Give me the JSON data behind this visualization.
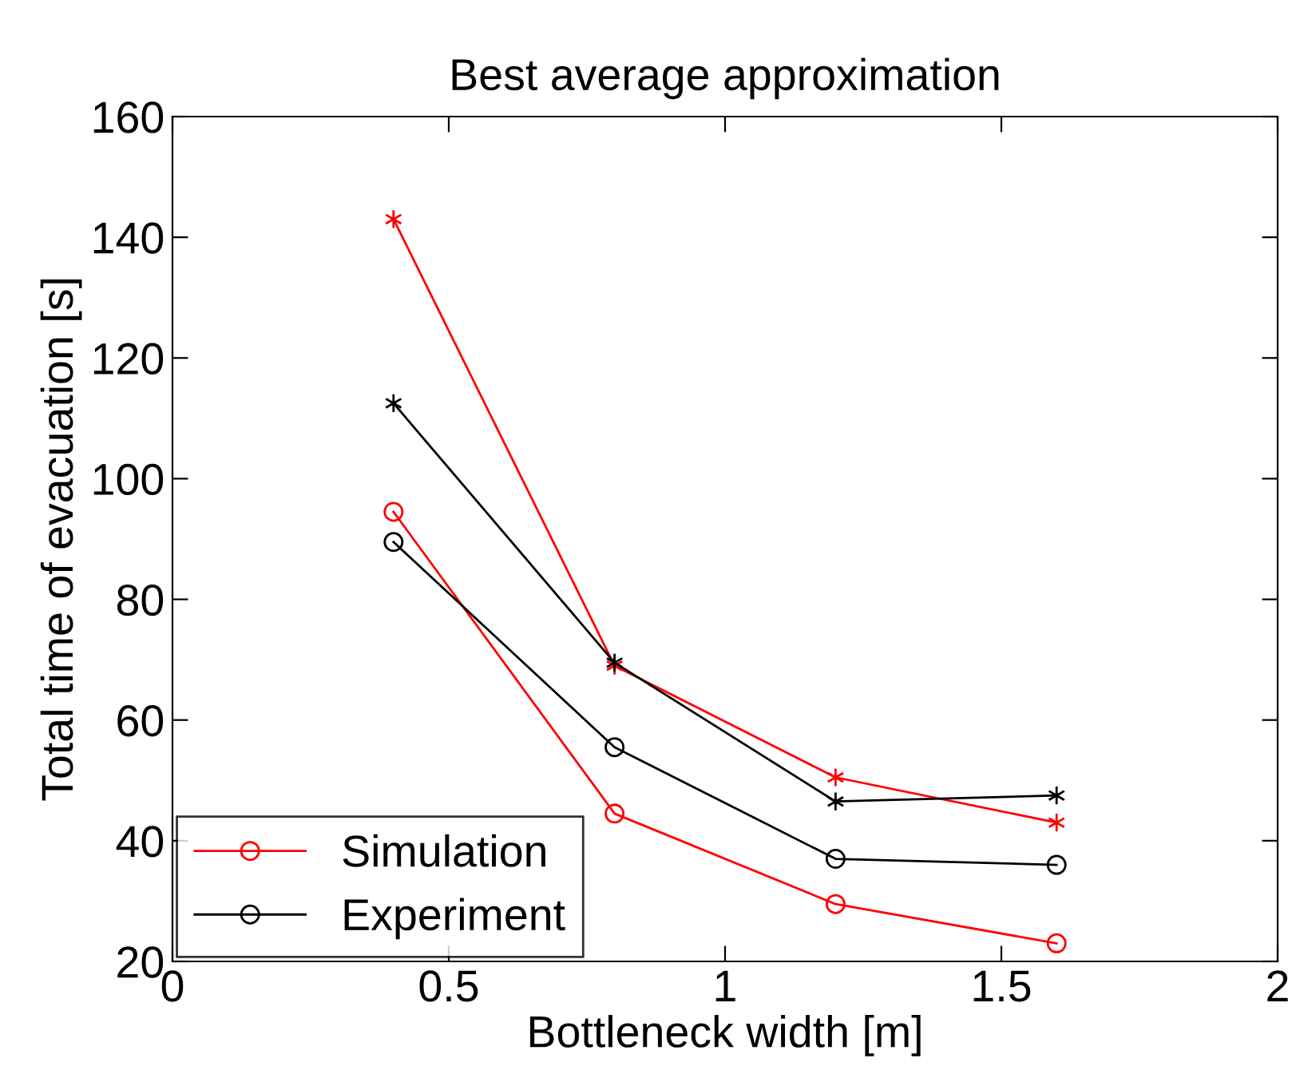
{
  "chart_data": {
    "type": "line",
    "title": "Best average approximation",
    "xlabel": "Bottleneck width [m]",
    "ylabel": "Total time of evacuation [s]",
    "x": [
      0.4,
      0.8,
      1.2,
      1.6
    ],
    "series": [
      {
        "name": "Simulation",
        "color": "#ff0000",
        "marker": "circle",
        "values": [
          94.5,
          44.5,
          29.5,
          23
        ]
      },
      {
        "name": "Experiment",
        "color": "#000000",
        "marker": "circle",
        "values": [
          89.5,
          55.5,
          37,
          36
        ]
      },
      {
        "color": "#ff0000",
        "marker": "cross",
        "values": [
          143,
          69,
          50.5,
          43
        ]
      },
      {
        "color": "#000000",
        "marker": "cross",
        "values": [
          112.5,
          69.5,
          46.5,
          47.5
        ]
      }
    ],
    "xlim": [
      0,
      2
    ],
    "xticks": [
      0,
      0.5,
      1,
      1.5,
      2
    ],
    "ylim": [
      20,
      160
    ],
    "yticks": [
      20,
      40,
      60,
      80,
      100,
      120,
      140,
      160
    ],
    "grid": false,
    "legend": "bottom left",
    "line_style": "solid"
  }
}
